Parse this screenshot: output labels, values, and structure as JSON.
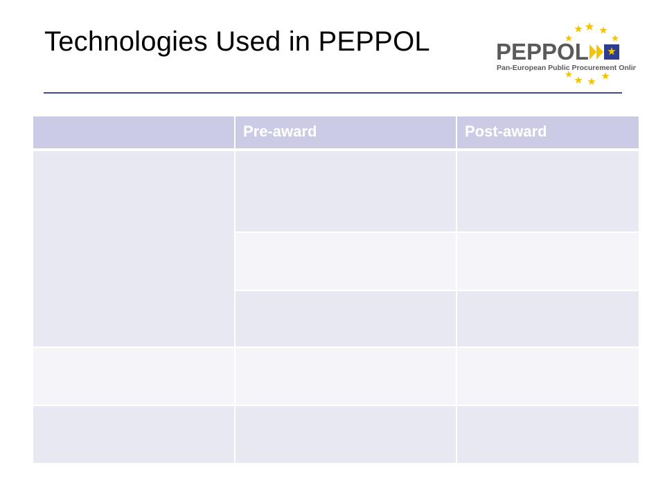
{
  "slide": {
    "title": "Technologies Used in PEPPOL"
  },
  "logo": {
    "wordmark": "PEPPOL",
    "tagline": "Pan-European Public Procurement Online",
    "star_color": "#f2c500",
    "wordmark_color": "#5a5a5a",
    "square_color": "#2e3d8f"
  },
  "table": {
    "header": [
      "",
      "Pre-award",
      "Post-award"
    ],
    "header_color": "#cccbe6",
    "band_dark": "#e8e8f2",
    "band_light": "#f4f4f9"
  }
}
